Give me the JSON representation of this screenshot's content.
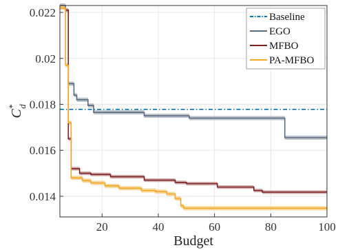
{
  "chart_data": {
    "type": "line",
    "xlabel": "Budget",
    "ylabel": "C",
    "ylabel_sup": "*",
    "ylabel_sub": "d",
    "xlim": [
      5,
      100
    ],
    "ylim": [
      0.0131,
      0.0223
    ],
    "xticks": [
      20,
      40,
      60,
      80,
      100
    ],
    "xtick_labels": [
      "20",
      "40",
      "60",
      "80",
      "100"
    ],
    "yticks": [
      0.014,
      0.016,
      0.018,
      0.02,
      0.022
    ],
    "ytick_labels": [
      "0.014",
      "0.016",
      "0.018",
      "0.02",
      "0.022"
    ],
    "grid": true,
    "legend_position": "top-right",
    "series": [
      {
        "name": "Baseline",
        "style": "dashdot",
        "color": "#0072BD",
        "band": 0,
        "points": [
          [
            5,
            0.01778
          ],
          [
            100,
            0.01778
          ]
        ]
      },
      {
        "name": "EGO",
        "style": "step",
        "color": "#5A6B7D",
        "band_color": "#AEB7C2",
        "band": 9e-05,
        "points": [
          [
            5,
            0.0223
          ],
          [
            6,
            0.0223
          ],
          [
            7,
            0.0221
          ],
          [
            8,
            0.0189
          ],
          [
            10,
            0.0184
          ],
          [
            11,
            0.0182
          ],
          [
            14,
            0.0182
          ],
          [
            15,
            0.01795
          ],
          [
            16,
            0.01795
          ],
          [
            17,
            0.01765
          ],
          [
            34,
            0.01765
          ],
          [
            35,
            0.0175
          ],
          [
            50,
            0.0175
          ],
          [
            51,
            0.0174
          ],
          [
            84,
            0.0174
          ],
          [
            85,
            0.01655
          ],
          [
            100,
            0.01655
          ]
        ]
      },
      {
        "name": "MFBO",
        "style": "step",
        "color": "#7B2020",
        "band_color": "#C9A0A0",
        "band": 8e-05,
        "points": [
          [
            5,
            0.0222
          ],
          [
            6,
            0.0222
          ],
          [
            7,
            0.0221
          ],
          [
            8,
            0.0165
          ],
          [
            9,
            0.0152
          ],
          [
            11,
            0.0152
          ],
          [
            12,
            0.015
          ],
          [
            15,
            0.015
          ],
          [
            16,
            0.01495
          ],
          [
            22,
            0.01495
          ],
          [
            23,
            0.01485
          ],
          [
            34,
            0.01485
          ],
          [
            35,
            0.0147
          ],
          [
            45,
            0.0147
          ],
          [
            46,
            0.0146
          ],
          [
            49,
            0.0146
          ],
          [
            50,
            0.01455
          ],
          [
            60,
            0.01455
          ],
          [
            61,
            0.0144
          ],
          [
            73,
            0.0144
          ],
          [
            74,
            0.01425
          ],
          [
            76,
            0.01425
          ],
          [
            77,
            0.01418
          ],
          [
            100,
            0.01418
          ]
        ]
      },
      {
        "name": "PA-MFBO",
        "style": "step",
        "color": "#F5A623",
        "band_color": "#F8D08A",
        "band": 9e-05,
        "points": [
          [
            5,
            0.0222
          ],
          [
            6,
            0.0222
          ],
          [
            7,
            0.0197
          ],
          [
            8,
            0.0172
          ],
          [
            9,
            0.0148
          ],
          [
            12,
            0.0148
          ],
          [
            13,
            0.01468
          ],
          [
            15,
            0.01468
          ],
          [
            16,
            0.01458
          ],
          [
            20,
            0.01458
          ],
          [
            21,
            0.01445
          ],
          [
            25,
            0.01445
          ],
          [
            26,
            0.01435
          ],
          [
            33,
            0.01435
          ],
          [
            34,
            0.01425
          ],
          [
            38,
            0.01425
          ],
          [
            39,
            0.0142
          ],
          [
            42,
            0.0142
          ],
          [
            43,
            0.0141
          ],
          [
            45,
            0.0141
          ],
          [
            46,
            0.0139
          ],
          [
            47,
            0.0139
          ],
          [
            48,
            0.01358
          ],
          [
            49,
            0.01348
          ],
          [
            100,
            0.01348
          ]
        ]
      }
    ]
  }
}
